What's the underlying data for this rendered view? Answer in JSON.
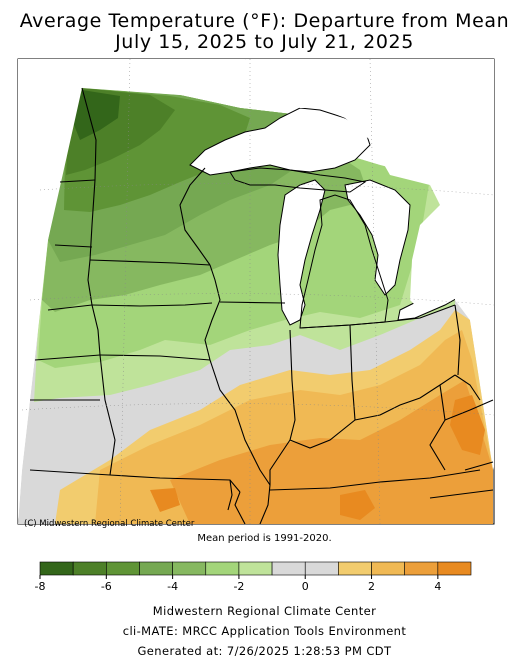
{
  "title_line1": "Average Temperature (°F): Departure from Mean",
  "title_line2": "July 15, 2025 to July 21, 2025",
  "credit": "(C) Midwestern Regional Climate Center",
  "mean_note": "Mean period is 1991-2020.",
  "legend": {
    "colors": [
      "#33661a",
      "#4d8028",
      "#5f9436",
      "#75a852",
      "#86b860",
      "#a3d57a",
      "#bfe39a",
      "#d9d9d9",
      "#d9d9d9",
      "#f2cc6e",
      "#f0b954",
      "#ec9f3a",
      "#e88a20"
    ],
    "tick_labels": [
      "-8",
      "-6",
      "-4",
      "-2",
      "0",
      "2",
      "4"
    ],
    "tick_values": [
      -8,
      -6,
      -4,
      -2,
      0,
      2,
      4
    ],
    "min": -8,
    "max": 5
  },
  "footer": {
    "line1": "Midwestern Regional Climate Center",
    "line2": "cli-MATE: MRCC Application Tools Environment",
    "line3": "Generated at: 7/26/2025 1:28:53 PM CDT"
  }
}
